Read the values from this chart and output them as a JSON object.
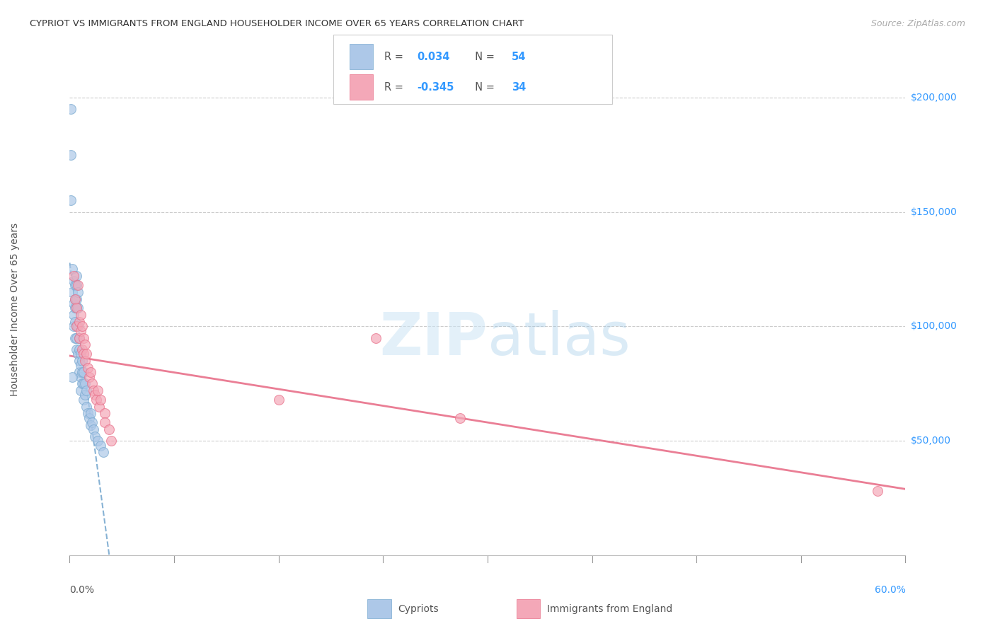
{
  "title": "CYPRIOT VS IMMIGRANTS FROM ENGLAND HOUSEHOLDER INCOME OVER 65 YEARS CORRELATION CHART",
  "source": "Source: ZipAtlas.com",
  "ylabel": "Householder Income Over 65 years",
  "r_cypriot": 0.034,
  "n_cypriot": 54,
  "r_england": -0.345,
  "n_england": 34,
  "legend_labels": [
    "Cypriots",
    "Immigrants from England"
  ],
  "cypriot_color": "#adc8e8",
  "england_color": "#f4a8b8",
  "cypriot_line_color": "#7aaad0",
  "england_line_color": "#e8708a",
  "ytick_labels": [
    "$200,000",
    "$150,000",
    "$100,000",
    "$50,000"
  ],
  "ytick_values": [
    200000,
    150000,
    100000,
    50000
  ],
  "ymin": 0,
  "ymax": 215000,
  "xmin": 0.0,
  "xmax": 0.6,
  "cypriot_x": [
    0.001,
    0.001,
    0.002,
    0.002,
    0.003,
    0.003,
    0.003,
    0.003,
    0.004,
    0.004,
    0.004,
    0.004,
    0.004,
    0.005,
    0.005,
    0.005,
    0.005,
    0.005,
    0.005,
    0.005,
    0.006,
    0.006,
    0.006,
    0.006,
    0.007,
    0.007,
    0.007,
    0.007,
    0.008,
    0.008,
    0.008,
    0.008,
    0.009,
    0.009,
    0.009,
    0.01,
    0.01,
    0.01,
    0.011,
    0.011,
    0.012,
    0.012,
    0.013,
    0.014,
    0.015,
    0.015,
    0.016,
    0.017,
    0.018,
    0.02,
    0.022,
    0.024,
    0.001,
    0.002
  ],
  "cypriot_y": [
    175000,
    155000,
    125000,
    115000,
    120000,
    110000,
    105000,
    100000,
    118000,
    112000,
    108000,
    102000,
    95000,
    122000,
    118000,
    112000,
    108000,
    100000,
    95000,
    90000,
    115000,
    108000,
    100000,
    88000,
    95000,
    90000,
    85000,
    80000,
    88000,
    83000,
    78000,
    72000,
    85000,
    80000,
    75000,
    80000,
    75000,
    68000,
    75000,
    70000,
    72000,
    65000,
    62000,
    60000,
    62000,
    57000,
    58000,
    55000,
    52000,
    50000,
    48000,
    45000,
    195000,
    78000
  ],
  "england_x": [
    0.003,
    0.004,
    0.005,
    0.005,
    0.006,
    0.007,
    0.007,
    0.008,
    0.008,
    0.009,
    0.009,
    0.01,
    0.01,
    0.011,
    0.011,
    0.012,
    0.013,
    0.014,
    0.015,
    0.016,
    0.017,
    0.018,
    0.019,
    0.02,
    0.021,
    0.022,
    0.025,
    0.025,
    0.028,
    0.03,
    0.15,
    0.28,
    0.58,
    0.22
  ],
  "england_y": [
    122000,
    112000,
    108000,
    100000,
    118000,
    102000,
    95000,
    105000,
    98000,
    100000,
    90000,
    95000,
    88000,
    92000,
    85000,
    88000,
    82000,
    78000,
    80000,
    75000,
    72000,
    70000,
    68000,
    72000,
    65000,
    68000,
    62000,
    58000,
    55000,
    50000,
    68000,
    60000,
    28000,
    95000
  ]
}
